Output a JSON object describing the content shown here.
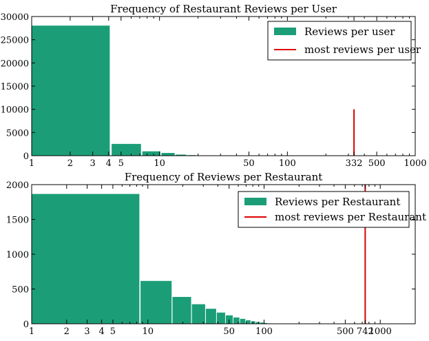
{
  "colors": {
    "bar": "#1b9e77",
    "marker": "#dd0000",
    "axis": "#000000",
    "background": "#ffffff"
  },
  "chart_data": [
    {
      "type": "bar",
      "title": "Frequency of Restaurant Reviews per User",
      "xscale": "log",
      "xlim": [
        1,
        1000
      ],
      "ylim": [
        0,
        30000
      ],
      "yticks": [
        0,
        5000,
        10000,
        15000,
        20000,
        25000,
        30000
      ],
      "xticks": [
        1,
        2,
        3,
        4,
        5,
        10,
        50,
        100,
        332,
        500,
        1000
      ],
      "grid": false,
      "legend_position": "top-right",
      "series": [
        {
          "name": "Reviews per user",
          "bins": [
            {
              "x0": 1,
              "x1": 4.1,
              "value": 28100
            },
            {
              "x0": 4.2,
              "x1": 7.2,
              "value": 2600
            },
            {
              "x0": 7.3,
              "x1": 10.2,
              "value": 1000
            },
            {
              "x0": 10.3,
              "x1": 13.2,
              "value": 650
            },
            {
              "x0": 13.3,
              "x1": 16.2,
              "value": 300
            },
            {
              "x0": 16.3,
              "x1": 19.2,
              "value": 180
            },
            {
              "x0": 19.3,
              "x1": 22.2,
              "value": 110
            },
            {
              "x0": 22.3,
              "x1": 25.2,
              "value": 70
            },
            {
              "x0": 25.3,
              "x1": 28.2,
              "value": 45
            },
            {
              "x0": 28.3,
              "x1": 31.2,
              "value": 30
            },
            {
              "x0": 31.3,
              "x1": 34.2,
              "value": 20
            }
          ]
        }
      ],
      "markers": [
        {
          "name": "most reviews per user",
          "x": 332,
          "y0": 0,
          "y1": 10000
        }
      ]
    },
    {
      "type": "bar",
      "title": "Frequency of Reviews per Restaurant",
      "xscale": "log",
      "xlim": [
        1,
        2000
      ],
      "ylim": [
        0,
        2000
      ],
      "yticks": [
        0,
        500,
        1000,
        1500,
        2000
      ],
      "xticks": [
        1,
        2,
        3,
        4,
        5,
        10,
        50,
        100,
        500,
        742,
        1000
      ],
      "grid": false,
      "legend_position": "top-right",
      "series": [
        {
          "name": "Reviews per Restaurant",
          "bins": [
            {
              "x0": 1,
              "x1": 8.5,
              "value": 1870
            },
            {
              "x0": 8.6,
              "x1": 16.1,
              "value": 620
            },
            {
              "x0": 16.2,
              "x1": 23.7,
              "value": 390
            },
            {
              "x0": 23.8,
              "x1": 31.3,
              "value": 285
            },
            {
              "x0": 31.4,
              "x1": 38.9,
              "value": 220
            },
            {
              "x0": 39,
              "x1": 46.5,
              "value": 165
            },
            {
              "x0": 46.6,
              "x1": 54.1,
              "value": 125
            },
            {
              "x0": 54.2,
              "x1": 61.7,
              "value": 95
            },
            {
              "x0": 61.8,
              "x1": 69.3,
              "value": 75
            },
            {
              "x0": 69.4,
              "x1": 76.9,
              "value": 55
            },
            {
              "x0": 77,
              "x1": 84.5,
              "value": 40
            },
            {
              "x0": 84.6,
              "x1": 92.1,
              "value": 30
            },
            {
              "x0": 92.2,
              "x1": 99.7,
              "value": 22
            },
            {
              "x0": 99.8,
              "x1": 107.3,
              "value": 15
            },
            {
              "x0": 107.4,
              "x1": 114.9,
              "value": 10
            },
            {
              "x0": 115,
              "x1": 122.5,
              "value": 6
            }
          ]
        }
      ],
      "markers": [
        {
          "name": "most reviews per Restaurant",
          "x": 742,
          "y0": 0,
          "y1": 2000
        }
      ]
    }
  ]
}
